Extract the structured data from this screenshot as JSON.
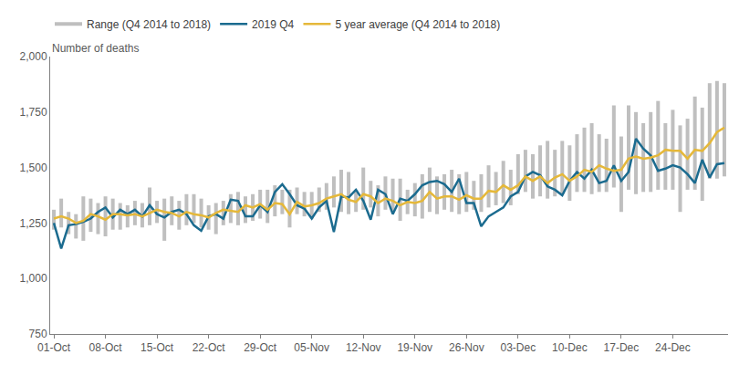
{
  "chart_data": {
    "type": "line",
    "y_label": "Number of deaths",
    "categories": [
      "01-Oct",
      null,
      null,
      null,
      null,
      null,
      null,
      "08-Oct",
      null,
      null,
      null,
      null,
      null,
      null,
      "15-Oct",
      null,
      null,
      null,
      null,
      null,
      null,
      "22-Oct",
      null,
      null,
      null,
      null,
      null,
      null,
      "29-Oct",
      null,
      null,
      null,
      null,
      null,
      null,
      "05-Nov",
      null,
      null,
      null,
      null,
      null,
      null,
      "12-Nov",
      null,
      null,
      null,
      null,
      null,
      null,
      "19-Nov",
      null,
      null,
      null,
      null,
      null,
      null,
      "26-Nov",
      null,
      null,
      null,
      null,
      null,
      null,
      "03-Dec",
      null,
      null,
      null,
      null,
      null,
      null,
      "10-Dec",
      null,
      null,
      null,
      null,
      null,
      null,
      "17-Dec",
      null,
      null,
      null,
      null,
      null,
      null,
      "24-Dec",
      null,
      null,
      null,
      null,
      null,
      null,
      null
    ],
    "ylim": [
      750,
      2000
    ],
    "yticks": [
      750,
      {
        "value": 1000,
        "label": "1,000"
      },
      {
        "value": 1250,
        "label": "1,250"
      },
      {
        "value": 1500,
        "label": "1,500"
      },
      {
        "value": 1750,
        "label": "1,750"
      },
      {
        "value": 2000,
        "label": "2,000"
      }
    ],
    "grid": false,
    "legend": "top",
    "series": [
      {
        "name": "Range (Q4 2014 to 2018)",
        "type": "range",
        "color": "#bfbfbf",
        "low": [
          1220,
          1230,
          1200,
          1180,
          1170,
          1210,
          1200,
          1190,
          1220,
          1220,
          1230,
          1240,
          1230,
          1240,
          1250,
          1170,
          1240,
          1220,
          1240,
          1250,
          1230,
          1220,
          1200,
          1240,
          1250,
          1240,
          1250,
          1260,
          1270,
          1250,
          1280,
          1290,
          1230,
          1290,
          1280,
          1270,
          1300,
          1310,
          1320,
          1300,
          1290,
          1300,
          1310,
          1320,
          1280,
          1310,
          1300,
          1260,
          1290,
          1280,
          1270,
          1300,
          1290,
          1310,
          1300,
          1290,
          1300,
          1310,
          1300,
          1320,
          1330,
          1340,
          1330,
          1380,
          1390,
          1360,
          1370,
          1360,
          1370,
          1380,
          1350,
          1390,
          1390,
          1380,
          1390,
          1390,
          1410,
          1300,
          1400,
          1380,
          1390,
          1390,
          1400,
          1400,
          1400,
          1300,
          1400,
          1400,
          1350,
          1450,
          1450,
          1460
        ],
        "high": [
          1310,
          1360,
          1300,
          1290,
          1370,
          1360,
          1340,
          1370,
          1360,
          1340,
          1330,
          1350,
          1340,
          1410,
          1350,
          1360,
          1370,
          1350,
          1380,
          1380,
          1360,
          1330,
          1340,
          1350,
          1380,
          1390,
          1370,
          1380,
          1400,
          1400,
          1420,
          1400,
          1400,
          1410,
          1390,
          1390,
          1410,
          1430,
          1460,
          1490,
          1480,
          1400,
          1500,
          1440,
          1420,
          1460,
          1450,
          1450,
          1400,
          1430,
          1470,
          1500,
          1460,
          1470,
          1490,
          1470,
          1480,
          1440,
          1470,
          1510,
          1480,
          1530,
          1490,
          1560,
          1580,
          1560,
          1600,
          1620,
          1580,
          1620,
          1600,
          1650,
          1680,
          1700,
          1650,
          1630,
          1780,
          1640,
          1780,
          1750,
          1700,
          1750,
          1800,
          1700,
          1760,
          1690,
          1720,
          1820,
          1770,
          1880,
          1890,
          1880
        ]
      },
      {
        "name": "2019 Q4",
        "type": "line",
        "color": "#1b6b8f",
        "values": [
          1250,
          1135,
          1240,
          1245,
          1255,
          1270,
          1300,
          1320,
          1275,
          1310,
          1290,
          1310,
          1280,
          1330,
          1290,
          1275,
          1300,
          1310,
          1290,
          1240,
          1215,
          1280,
          1290,
          1270,
          1355,
          1350,
          1280,
          1280,
          1330,
          1300,
          1390,
          1425,
          1380,
          1330,
          1315,
          1270,
          1320,
          1350,
          1210,
          1370,
          1365,
          1400,
          1350,
          1265,
          1400,
          1380,
          1290,
          1360,
          1350,
          1380,
          1420,
          1435,
          1440,
          1425,
          1390,
          1450,
          1340,
          1340,
          1235,
          1280,
          1300,
          1320,
          1370,
          1390,
          1460,
          1480,
          1465,
          1415,
          1400,
          1375,
          1440,
          1480,
          1450,
          1490,
          1430,
          1440,
          1510,
          1440,
          1480,
          1630,
          1585,
          1555,
          1485,
          1495,
          1510,
          1500,
          1470,
          1430,
          1535,
          1455,
          1515,
          1520
        ]
      },
      {
        "name": "5 year average (Q4 2014 to 2018)",
        "type": "line",
        "color": "#e5b83a",
        "values": [
          1270,
          1280,
          1270,
          1250,
          1260,
          1290,
          1280,
          1265,
          1290,
          1290,
          1285,
          1290,
          1280,
          1295,
          1310,
          1300,
          1295,
          1280,
          1300,
          1290,
          1285,
          1275,
          1295,
          1310,
          1305,
          1300,
          1330,
          1320,
          1335,
          1310,
          1340,
          1335,
          1290,
          1345,
          1325,
          1330,
          1340,
          1360,
          1370,
          1380,
          1355,
          1345,
          1380,
          1370,
          1340,
          1360,
          1350,
          1330,
          1345,
          1340,
          1350,
          1390,
          1360,
          1370,
          1370,
          1355,
          1375,
          1360,
          1360,
          1395,
          1390,
          1420,
          1400,
          1420,
          1460,
          1440,
          1460,
          1430,
          1455,
          1470,
          1440,
          1460,
          1490,
          1480,
          1510,
          1495,
          1485,
          1490,
          1540,
          1550,
          1540,
          1545,
          1555,
          1580,
          1575,
          1575,
          1540,
          1580,
          1575,
          1610,
          1660,
          1680
        ]
      }
    ]
  }
}
